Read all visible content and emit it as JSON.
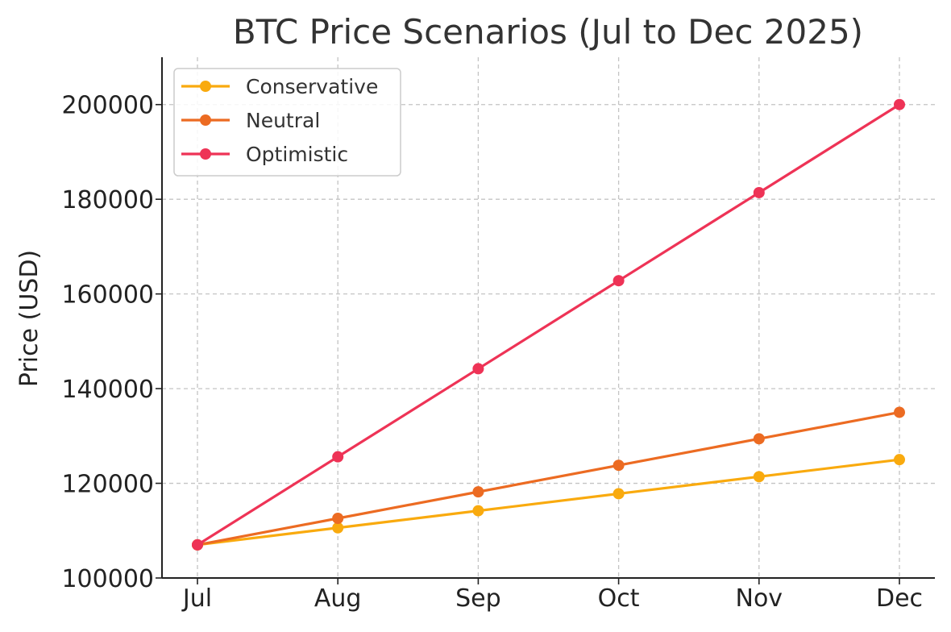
{
  "chart_data": {
    "type": "line",
    "title": "BTC Price Scenarios (Jul to Dec 2025)",
    "xlabel": "",
    "ylabel": "Price (USD)",
    "categories": [
      "Jul",
      "Aug",
      "Sep",
      "Oct",
      "Nov",
      "Dec"
    ],
    "ylim": [
      100000,
      210000
    ],
    "yticks": [
      100000,
      120000,
      140000,
      160000,
      180000,
      200000
    ],
    "grid": true,
    "legend_position": "top-left",
    "series": [
      {
        "name": "Conservative",
        "color": "#F9AA0E",
        "values": [
          107000,
          110600,
          114200,
          117800,
          121400,
          125000
        ]
      },
      {
        "name": "Neutral",
        "color": "#EC6B22",
        "values": [
          107000,
          112600,
          118200,
          123800,
          129400,
          135000
        ]
      },
      {
        "name": "Optimistic",
        "color": "#EE3356",
        "values": [
          107000,
          125600,
          144200,
          162800,
          181400,
          200000
        ]
      }
    ]
  }
}
